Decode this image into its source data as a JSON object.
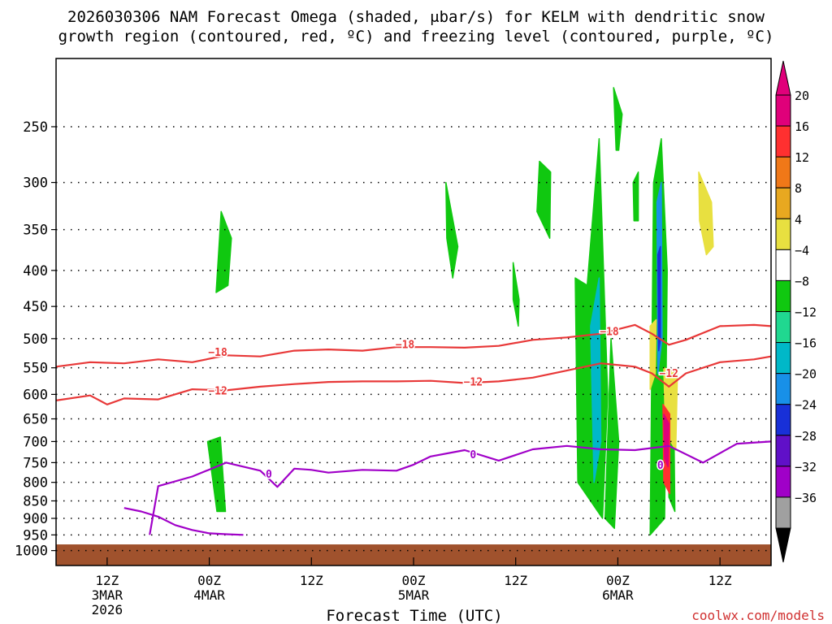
{
  "chart_data": {
    "type": "heatmap",
    "title_line1": "2026030306 NAM Forecast Omega (shaded, μbar/s) for KELM with dendritic snow",
    "title_line2": "growth region (contoured, red, ºC) and freezing level (contoured, purple, ºC)",
    "xlabel": "Forecast Time (UTC)",
    "ylabel": "",
    "credit": "coolwx.com/models",
    "x_unit": "forecast hour",
    "xlim": [
      0,
      84
    ],
    "y_unit": "hPa",
    "ylim": [
      1050,
      200
    ],
    "y_scale": "log",
    "pressure_levels": [
      250,
      300,
      350,
      400,
      450,
      500,
      550,
      600,
      650,
      700,
      750,
      800,
      850,
      900,
      950,
      1000
    ],
    "x_ticks": [
      {
        "x": 6,
        "lines": [
          "12Z",
          "3MAR",
          "2026"
        ]
      },
      {
        "x": 18,
        "lines": [
          "00Z",
          "4MAR"
        ]
      },
      {
        "x": 30,
        "lines": [
          "12Z"
        ]
      },
      {
        "x": 42,
        "lines": [
          "00Z",
          "5MAR"
        ]
      },
      {
        "x": 54,
        "lines": [
          "12Z"
        ]
      },
      {
        "x": 66,
        "lines": [
          "00Z",
          "6MAR"
        ]
      },
      {
        "x": 78,
        "lines": [
          "12Z"
        ]
      }
    ],
    "colorbar": {
      "labels": [
        "20",
        "16",
        "12",
        "8",
        "4",
        "−4",
        "−8",
        "−12",
        "−16",
        "−20",
        "−24",
        "−28",
        "−32",
        "−36"
      ],
      "colors": [
        "#e0007a",
        "#ff3030",
        "#f07818",
        "#e8a820",
        "#e8e040",
        "#ffffff",
        "#10c810",
        "#20d890",
        "#00b8c8",
        "#1890e8",
        "#1830d8",
        "#6010c8",
        "#a000c8",
        "#a0a0a0"
      ]
    },
    "omega_fields": [
      {
        "color": "#10c810",
        "outline": [
          [
            18.8,
            430
          ],
          [
            19.4,
            330
          ],
          [
            20.6,
            360
          ],
          [
            20.2,
            420
          ]
        ]
      },
      {
        "color": "#10c810",
        "outline": [
          [
            17.8,
            700
          ],
          [
            19.3,
            690
          ],
          [
            19.9,
            880
          ],
          [
            18.9,
            880
          ]
        ]
      },
      {
        "color": "#10c810",
        "outline": [
          [
            45.8,
            300
          ],
          [
            47.2,
            370
          ],
          [
            46.6,
            410
          ],
          [
            45.9,
            360
          ]
        ]
      },
      {
        "color": "#10c810",
        "outline": [
          [
            53.7,
            390
          ],
          [
            54.4,
            440
          ],
          [
            54.3,
            480
          ],
          [
            53.7,
            440
          ]
        ]
      },
      {
        "color": "#10c810",
        "outline": [
          [
            56.8,
            280
          ],
          [
            58.1,
            290
          ],
          [
            58.0,
            360
          ],
          [
            56.5,
            330
          ]
        ]
      },
      {
        "color": "#10c810",
        "outline": [
          [
            61.0,
            410
          ],
          [
            61.3,
            800
          ],
          [
            64.2,
            900
          ],
          [
            64.8,
            600
          ],
          [
            63.8,
            260
          ],
          [
            62.4,
            420
          ]
        ]
      },
      {
        "color": "#10c810",
        "outline": [
          [
            64.5,
            900
          ],
          [
            65.6,
            930
          ],
          [
            66.1,
            700
          ],
          [
            65.2,
            500
          ]
        ]
      },
      {
        "color": "#10c810",
        "outline": [
          [
            65.5,
            220
          ],
          [
            66.5,
            240
          ],
          [
            66.1,
            270
          ],
          [
            65.8,
            270
          ]
        ]
      },
      {
        "color": "#10c810",
        "outline": [
          [
            67.8,
            300
          ],
          [
            68.4,
            290
          ],
          [
            68.4,
            340
          ],
          [
            67.9,
            340
          ]
        ]
      },
      {
        "color": "#10c810",
        "outline": [
          [
            69.8,
            950
          ],
          [
            70.2,
            300
          ],
          [
            71.1,
            260
          ],
          [
            71.8,
            400
          ],
          [
            71.5,
            900
          ]
        ]
      },
      {
        "color": "#10c810",
        "outline": [
          [
            71.9,
            680
          ],
          [
            72.6,
            690
          ],
          [
            72.7,
            880
          ],
          [
            72.0,
            840
          ]
        ]
      },
      {
        "color": "#00b8c8",
        "outline": [
          [
            62.8,
            480
          ],
          [
            63.2,
            800
          ],
          [
            64.0,
            700
          ],
          [
            63.8,
            410
          ]
        ]
      },
      {
        "color": "#1890e8",
        "outline": [
          [
            70.6,
            320
          ],
          [
            71.1,
            300
          ],
          [
            71.2,
            500
          ],
          [
            70.7,
            560
          ]
        ]
      },
      {
        "color": "#1830d8",
        "outline": [
          [
            70.7,
            380
          ],
          [
            71.0,
            370
          ],
          [
            71.0,
            500
          ],
          [
            70.8,
            520
          ]
        ]
      },
      {
        "color": "#e8e040",
        "outline": [
          [
            75.5,
            290
          ],
          [
            77.0,
            320
          ],
          [
            77.2,
            370
          ],
          [
            76.4,
            380
          ],
          [
            75.6,
            340
          ]
        ]
      },
      {
        "color": "#e8e040",
        "outline": [
          [
            69.8,
            480
          ],
          [
            70.5,
            470
          ],
          [
            70.4,
            560
          ],
          [
            69.8,
            590
          ]
        ]
      },
      {
        "color": "#e8e040",
        "outline": [
          [
            71.4,
            550
          ],
          [
            73.0,
            560
          ],
          [
            72.8,
            720
          ],
          [
            71.6,
            680
          ]
        ]
      },
      {
        "color": "#ff3030",
        "outline": [
          [
            71.3,
            620
          ],
          [
            72.1,
            640
          ],
          [
            72.1,
            830
          ],
          [
            71.4,
            800
          ]
        ]
      },
      {
        "color": "#e0007a",
        "outline": [
          [
            71.4,
            640
          ],
          [
            72.0,
            660
          ],
          [
            71.9,
            760
          ],
          [
            71.5,
            740
          ]
        ]
      }
    ],
    "isotherm_minus18": {
      "color": "#e83838",
      "label": "−18",
      "label_positions": [
        [
          19,
          522
        ],
        [
          41,
          509
        ],
        [
          65,
          488
        ]
      ],
      "x": [
        0,
        4,
        8,
        12,
        16,
        20,
        24,
        28,
        32,
        36,
        40,
        44,
        48,
        52,
        56,
        60,
        64,
        68,
        70,
        72,
        74,
        78,
        82,
        84
      ],
      "y": [
        548,
        540,
        542,
        535,
        540,
        528,
        530,
        520,
        518,
        520,
        514,
        514,
        515,
        512,
        502,
        498,
        492,
        478,
        492,
        510,
        502,
        480,
        478,
        480
      ]
    },
    "isotherm_minus12": {
      "color": "#e83838",
      "label": "−12",
      "label_positions": [
        [
          19,
          592
        ],
        [
          49,
          575
        ],
        [
          72,
          559
        ]
      ],
      "x": [
        0,
        4,
        6,
        8,
        12,
        16,
        20,
        24,
        28,
        32,
        36,
        40,
        44,
        48,
        52,
        56,
        60,
        64,
        68,
        70,
        72,
        74,
        78,
        82,
        84
      ],
      "y": [
        612,
        602,
        620,
        608,
        610,
        590,
        592,
        585,
        580,
        576,
        575,
        575,
        574,
        578,
        575,
        568,
        555,
        542,
        548,
        560,
        585,
        560,
        540,
        535,
        530
      ]
    },
    "freezing_level": {
      "color": "#a000c8",
      "label": "0",
      "label_positions": [
        [
          25,
          778
        ],
        [
          49,
          730
        ],
        [
          71,
          755
        ]
      ],
      "x": [
        11,
        12,
        16,
        20,
        24,
        26,
        28,
        30,
        32,
        36,
        40,
        42,
        44,
        48,
        52,
        56,
        60,
        64,
        68,
        72,
        76,
        80,
        84
      ],
      "y": [
        950,
        810,
        785,
        750,
        770,
        812,
        765,
        768,
        775,
        768,
        770,
        755,
        735,
        720,
        745,
        718,
        710,
        718,
        720,
        710,
        750,
        705,
        700
      ]
    },
    "freezing_level_near_surface": {
      "color": "#a000c8",
      "x": [
        8,
        10,
        12,
        14,
        16,
        18,
        20,
        22
      ],
      "y": [
        870,
        880,
        895,
        920,
        935,
        945,
        948,
        950
      ]
    },
    "terrain": {
      "color": "#a0522d",
      "top_hPa": 980
    },
    "colorbar_label_note": "μbar/s"
  }
}
